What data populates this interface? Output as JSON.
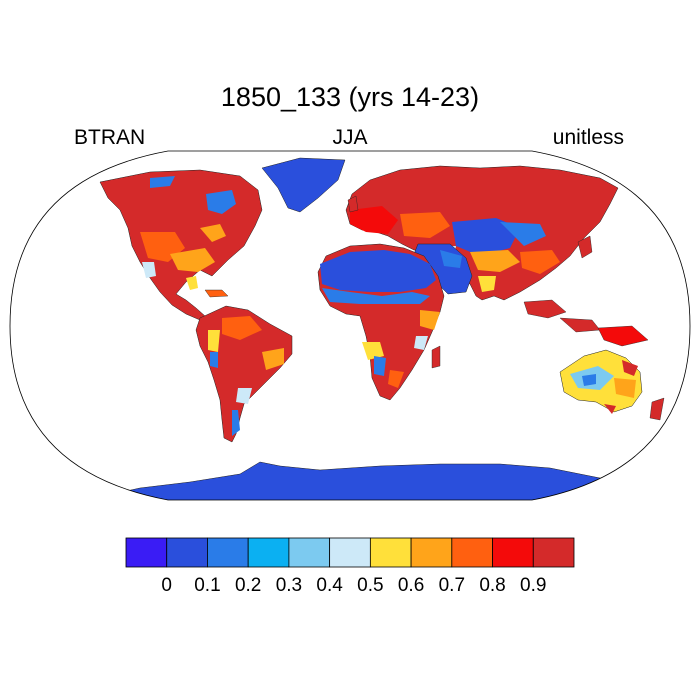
{
  "title": "1850_133 (yrs 14-23)",
  "left_label": "BTRAN",
  "center_label": "JJA",
  "right_label": "unitless",
  "colorbar": {
    "colors": [
      "#3a1cf5",
      "#2a4fdc",
      "#2a7ce8",
      "#0bb0f2",
      "#7ccaf0",
      "#cde9f8",
      "#ffe03a",
      "#ffa41a",
      "#ff6010",
      "#f40a0a",
      "#d42a2a"
    ],
    "tick_labels": [
      "0",
      "0.1",
      "0.2",
      "0.3",
      "0.4",
      "0.5",
      "0.6",
      "0.7",
      "0.8",
      "0.9"
    ]
  }
}
